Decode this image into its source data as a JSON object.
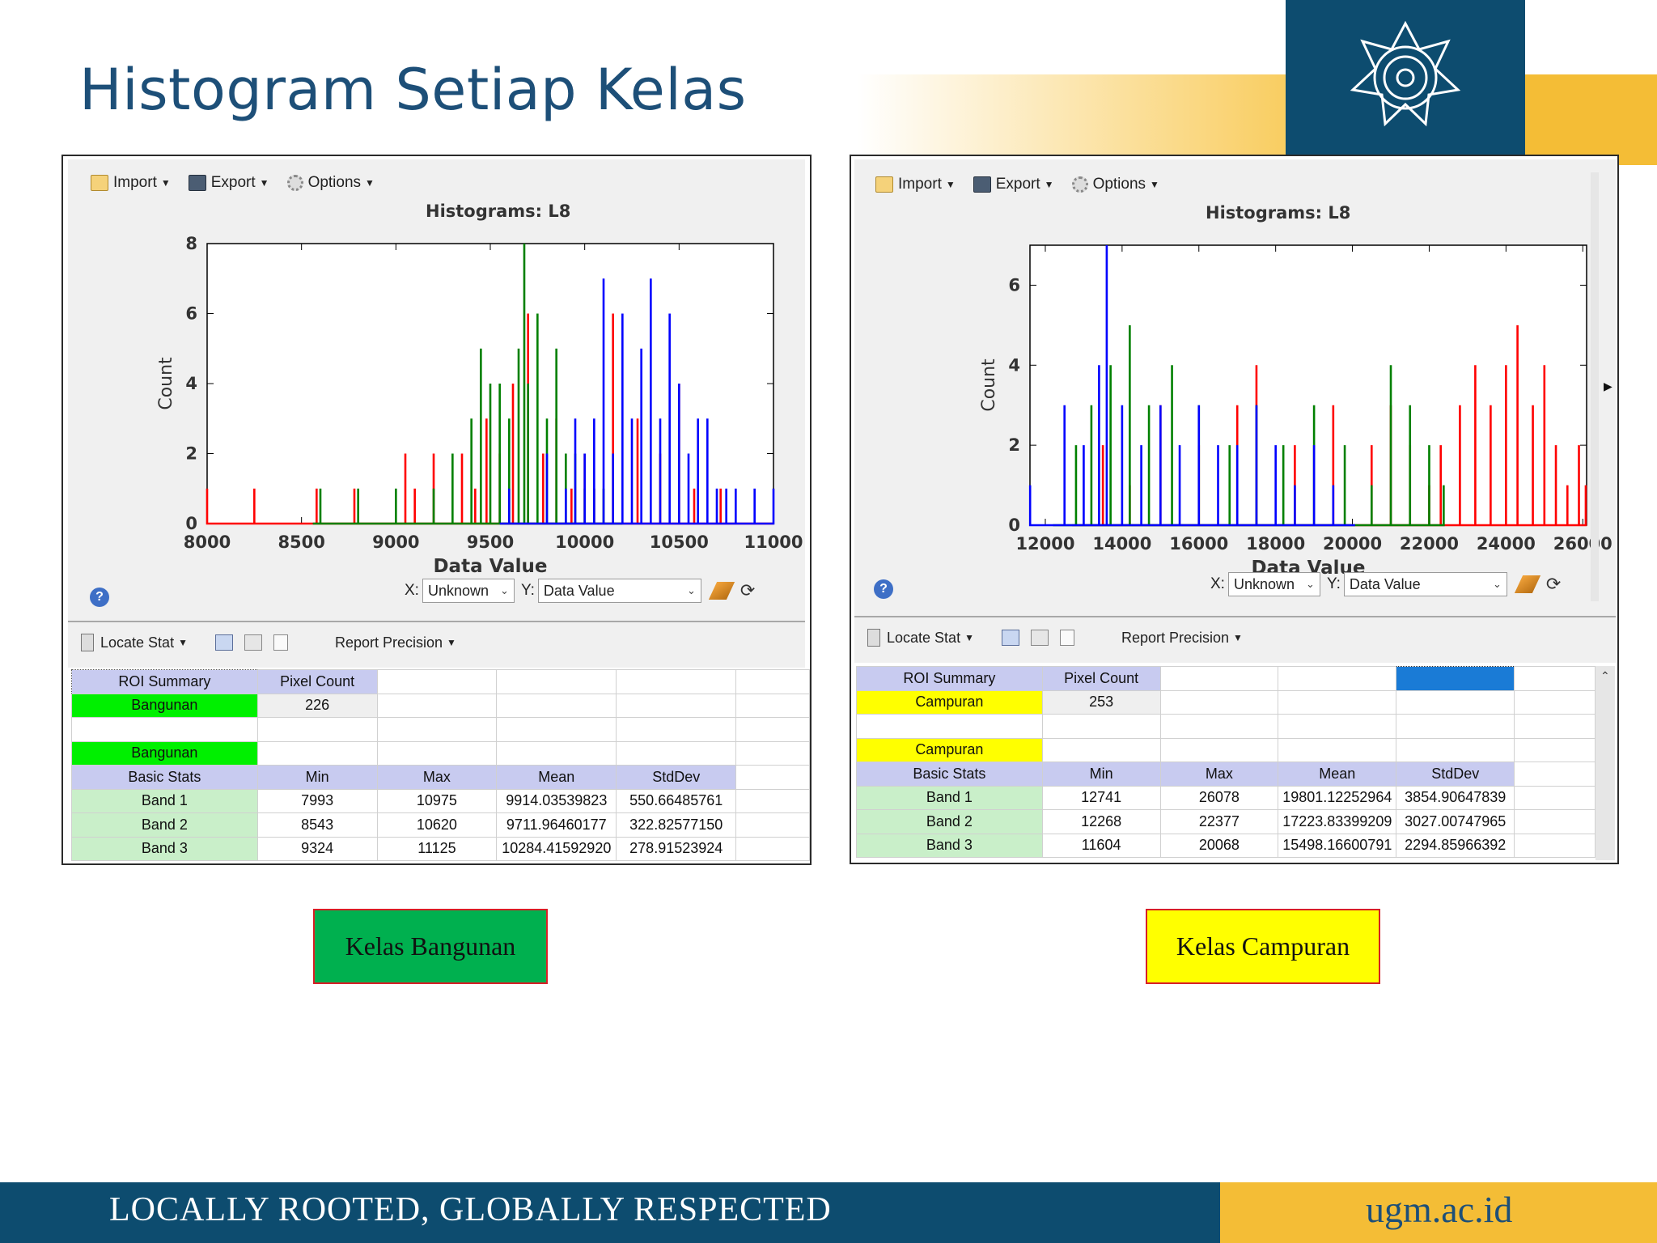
{
  "slide": {
    "title": "Histogram Setiap Kelas",
    "footer_tagline": "LOCALLY ROOTED, GLOBALLY RESPECTED",
    "footer_site": "ugm.ac.id",
    "logo": "ugm-seal-logo",
    "colors": {
      "brand_blue": "#0d4c6f",
      "brand_gold": "#f4bd36",
      "title": "#1d4f78"
    }
  },
  "left_panel": {
    "toolbar": {
      "import": "Import",
      "export": "Export",
      "options": "Options"
    },
    "chart_title": "Histograms: L8",
    "x_axis_label": "Data Value",
    "y_axis_label": "Count",
    "x_select_label": "X:",
    "x_select_value": "Unknown",
    "y_select_label": "Y:",
    "y_select_value": "Data Value",
    "help": "?",
    "stat_toolbar": {
      "locate_stat": "Locate Stat",
      "report_precision": "Report Precision"
    },
    "table": {
      "roi_header": "ROI Summary",
      "pixel_header": "Pixel Count",
      "roi_name": "Bangunan",
      "pixel_count": "226",
      "roi_name_2": "Bangunan",
      "stats_header": [
        "Basic Stats",
        "Min",
        "Max",
        "Mean",
        "StdDev"
      ],
      "rows": [
        [
          "Band 1",
          "7993",
          "10975",
          "9914.03539823",
          "550.66485761"
        ],
        [
          "Band 2",
          "8543",
          "10620",
          "9711.96460177",
          "322.82577150"
        ],
        [
          "Band 3",
          "9324",
          "11125",
          "10284.41592920",
          "278.91523924"
        ]
      ]
    },
    "class_label": "Kelas Bangunan",
    "class_color": "#00b04f"
  },
  "right_panel": {
    "toolbar": {
      "import": "Import",
      "export": "Export",
      "options": "Options"
    },
    "chart_title": "Histograms: L8",
    "x_axis_label": "Data Value",
    "y_axis_label": "Count",
    "x_select_label": "X:",
    "x_select_value": "Unknown",
    "y_select_label": "Y:",
    "y_select_value": "Data Value",
    "help": "?",
    "stat_toolbar": {
      "locate_stat": "Locate Stat",
      "report_precision": "Report Precision"
    },
    "table": {
      "roi_header": "ROI Summary",
      "pixel_header": "Pixel Count",
      "roi_name": "Campuran",
      "pixel_count": "253",
      "roi_name_2": "Campuran",
      "stats_header": [
        "Basic Stats",
        "Min",
        "Max",
        "Mean",
        "StdDev"
      ],
      "rows": [
        [
          "Band 1",
          "12741",
          "26078",
          "19801.12252964",
          "3854.90647839"
        ],
        [
          "Band 2",
          "12268",
          "22377",
          "17223.83399209",
          "3027.00747965"
        ],
        [
          "Band 3",
          "11604",
          "20068",
          "15498.16600791",
          "2294.85966392"
        ]
      ]
    },
    "class_label": "Kelas Campuran",
    "class_color": "#ffff00"
  },
  "chart_data": [
    {
      "type": "line",
      "title": "Histograms: L8",
      "xlabel": "Data Value",
      "ylabel": "Count",
      "xlim": [
        8000,
        11000
      ],
      "ylim": [
        0,
        8
      ],
      "xticks": [
        "8000",
        "8500",
        "9000",
        "9500",
        "10000",
        "10500",
        "11000"
      ],
      "yticks": [
        "0",
        "2",
        "4",
        "6",
        "8"
      ],
      "series": [
        {
          "color": "#ff0000",
          "x": [
            8000,
            8020,
            8250,
            8520,
            8580,
            8780,
            9000,
            9050,
            9100,
            9200,
            9280,
            9350,
            9420,
            9480,
            9550,
            9620,
            9700,
            9780,
            9850,
            9930,
            10000,
            10050,
            10150,
            10280,
            10400,
            10500,
            10580,
            10720,
            10950,
            11000
          ],
          "y": [
            1,
            0,
            1,
            0,
            1,
            1,
            0,
            2,
            1,
            2,
            0,
            2,
            1,
            3,
            2,
            4,
            6,
            2,
            3,
            1,
            2,
            1,
            6,
            3,
            2,
            4,
            1,
            1,
            0,
            0
          ]
        },
        {
          "color": "#008000",
          "x": [
            8560,
            8600,
            8700,
            8800,
            8900,
            9000,
            9100,
            9200,
            9300,
            9400,
            9450,
            9500,
            9550,
            9600,
            9650,
            9680,
            9700,
            9750,
            9800,
            9850,
            9900,
            9950,
            10000,
            10050,
            10100,
            10200
          ],
          "y": [
            0,
            1,
            0,
            1,
            0,
            1,
            0,
            1,
            2,
            3,
            5,
            4,
            4,
            3,
            5,
            8,
            4,
            6,
            3,
            5,
            2,
            2,
            1,
            1,
            1,
            0
          ]
        },
        {
          "color": "#0000ff",
          "x": [
            9550,
            9600,
            9700,
            9800,
            9900,
            9950,
            10000,
            10050,
            10100,
            10150,
            10200,
            10250,
            10300,
            10350,
            10400,
            10450,
            10500,
            10550,
            10600,
            10650,
            10700,
            10750,
            10800,
            10850,
            10900,
            10950,
            11000
          ],
          "y": [
            0,
            1,
            0,
            2,
            1,
            3,
            2,
            3,
            7,
            2,
            6,
            3,
            5,
            7,
            3,
            6,
            4,
            2,
            3,
            3,
            1,
            1,
            1,
            0,
            1,
            0,
            1
          ]
        }
      ]
    },
    {
      "type": "line",
      "title": "Histograms: L8",
      "xlabel": "Data Value",
      "ylabel": "Count",
      "xlim": [
        11600,
        26100
      ],
      "ylim": [
        0,
        7
      ],
      "xticks": [
        "12000",
        "14000",
        "16000",
        "18000",
        "20000",
        "22000",
        "24000",
        "26000"
      ],
      "yticks": [
        "0",
        "2",
        "4",
        "6"
      ],
      "series": [
        {
          "color": "#ff0000",
          "x": [
            12700,
            13500,
            14200,
            15000,
            16000,
            17000,
            17500,
            18500,
            19500,
            20500,
            21000,
            21500,
            22000,
            22300,
            22800,
            23200,
            23600,
            24000,
            24300,
            24700,
            25000,
            25300,
            25600,
            25900,
            26078
          ],
          "y": [
            0,
            2,
            1,
            3,
            2,
            3,
            4,
            2,
            3,
            2,
            3,
            2,
            1,
            2,
            3,
            4,
            3,
            4,
            5,
            3,
            4,
            2,
            1,
            2,
            1
          ]
        },
        {
          "color": "#008000",
          "x": [
            12200,
            12800,
            13200,
            13700,
            14200,
            14700,
            15300,
            16000,
            16800,
            17500,
            18200,
            19000,
            19800,
            20500,
            21000,
            21500,
            22000,
            22377
          ],
          "y": [
            0,
            2,
            3,
            4,
            5,
            3,
            4,
            3,
            2,
            3,
            2,
            3,
            2,
            1,
            4,
            3,
            2,
            1
          ]
        },
        {
          "color": "#0000ff",
          "x": [
            11604,
            12000,
            12500,
            13000,
            13400,
            13600,
            14000,
            14500,
            15000,
            15500,
            16000,
            16500,
            17000,
            17500,
            18000,
            18500,
            19000,
            19500,
            20068
          ],
          "y": [
            1,
            0,
            3,
            2,
            4,
            7,
            3,
            2,
            3,
            2,
            3,
            2,
            2,
            3,
            2,
            1,
            2,
            1,
            0
          ]
        }
      ]
    }
  ]
}
